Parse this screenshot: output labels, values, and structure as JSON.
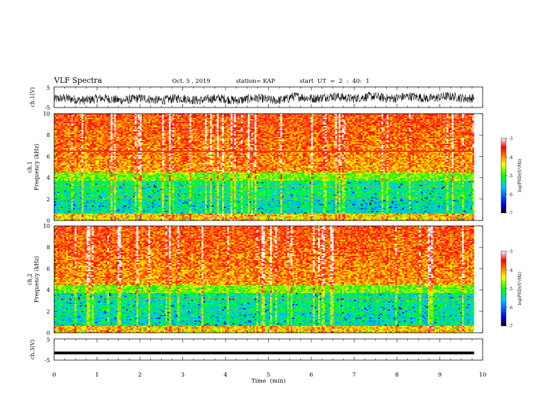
{
  "header": {
    "title": "VLF Spectra",
    "date": "Oct. 5 , 2019",
    "station": "station= KAP",
    "start_ut": "start UT = 2 : 40: 1"
  },
  "chart_data": [
    {
      "type": "line",
      "panel": "ch1-waveform",
      "ylabel": "ch.1(V)",
      "ylim": [
        -5,
        5
      ],
      "yticks": [
        "5",
        "-5"
      ],
      "xlim": [
        0,
        10
      ],
      "line_color": "#000000",
      "description_level": "noisy signal between about -4 and 3.5 V, mean near -1 V"
    },
    {
      "type": "heatmap",
      "panel": "ch1-spectrogram",
      "ylabel": "ch.1",
      "ylabel2": "Frequency (kHz)",
      "ylim": [
        0,
        10
      ],
      "yticks": [
        "0",
        "2",
        "4",
        "6",
        "8",
        "10"
      ],
      "xlim": [
        0,
        9.8
      ],
      "colorbar": {
        "label": "log(PSD)(V²/Hz)",
        "range": [
          -7,
          -3
        ],
        "ticks": [
          "-3",
          "-4",
          "-5",
          "-6",
          "-7"
        ],
        "colors": [
          "#000000",
          "#0000ff",
          "#00c8ff",
          "#00ff00",
          "#ffff00",
          "#ff0000",
          "#ffffff"
        ]
      }
    },
    {
      "type": "heatmap",
      "panel": "ch2-spectrogram",
      "ylabel": "ch.2",
      "ylabel2": "Frequency (kHz)",
      "ylim": [
        0,
        10
      ],
      "yticks": [
        "0",
        "2",
        "4",
        "6",
        "8",
        "10"
      ],
      "xlim": [
        0,
        9.8
      ],
      "colorbar": {
        "label": "log(PSD)(V²/Hz)",
        "range": [
          -7,
          -3
        ],
        "ticks": [
          "-3",
          "-4",
          "-5",
          "-6",
          "-7"
        ],
        "colors": [
          "#000000",
          "#0000ff",
          "#00c8ff",
          "#00ff00",
          "#ffff00",
          "#ff0000",
          "#ffffff"
        ]
      }
    },
    {
      "type": "line",
      "panel": "ch3-waveform",
      "ylabel": "ch.3(V)",
      "ylim": [
        -5,
        5
      ],
      "yticks": [
        "5",
        "-5"
      ],
      "xlim": [
        0,
        10
      ],
      "x": [
        0,
        9.8
      ],
      "y": [
        -1.6,
        -1.6
      ],
      "line_color": "#000000"
    }
  ],
  "xaxis": {
    "label": "Time (min)",
    "range": [
      0,
      10
    ],
    "ticks": [
      "0",
      "1",
      "2",
      "3",
      "4",
      "5",
      "6",
      "7",
      "8",
      "9",
      "10"
    ]
  }
}
